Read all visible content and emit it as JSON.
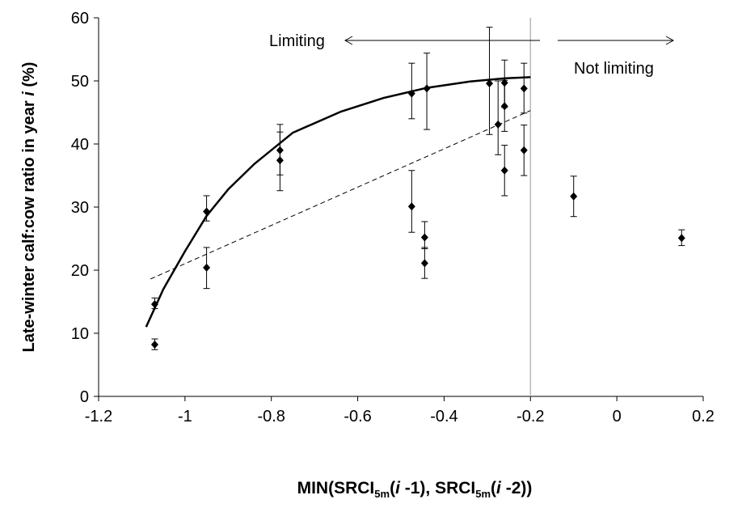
{
  "chart_data": {
    "type": "scatter",
    "xlabel": {
      "main": "MIN(SRCI",
      "sub1": "5m",
      "mid1": "(",
      "i1": "i",
      "mid2": " -1), SRCI",
      "sub2": "5m",
      "mid3": "(",
      "i2": "i",
      "end": " -2))"
    },
    "ylabel": {
      "main": "Late-winter calf:cow ratio in year ",
      "italic": "i",
      "end": "  (%)"
    },
    "xlim": [
      -1.2,
      0.2
    ],
    "ylim": [
      0,
      60
    ],
    "xticks": [
      "-1.2",
      "-1",
      "-0.8",
      "-0.6",
      "-0.4",
      "-0.2",
      "0",
      "0.2"
    ],
    "yticks": [
      "0",
      "10",
      "20",
      "30",
      "40",
      "50",
      "60"
    ],
    "grid": false,
    "threshold_x": -0.2,
    "annotations": {
      "limiting": "Limiting",
      "not_limiting": "Not limiting"
    },
    "points": [
      {
        "x": -1.07,
        "y": 14.6,
        "lo": 13.9,
        "hi": 15.6
      },
      {
        "x": -1.07,
        "y": 8.2,
        "lo": 7.4,
        "hi": 9.1
      },
      {
        "x": -0.95,
        "y": 29.3,
        "lo": 27.8,
        "hi": 31.8
      },
      {
        "x": -0.95,
        "y": 20.4,
        "lo": 17.1,
        "hi": 23.6
      },
      {
        "x": -0.78,
        "y": 39.0,
        "lo": 35.1,
        "hi": 43.1
      },
      {
        "x": -0.78,
        "y": 37.4,
        "lo": 32.6,
        "hi": 41.9
      },
      {
        "x": -0.475,
        "y": 48.0,
        "lo": 44.0,
        "hi": 52.8
      },
      {
        "x": -0.475,
        "y": 30.1,
        "lo": 26.0,
        "hi": 35.8
      },
      {
        "x": -0.44,
        "y": 48.8,
        "lo": 42.3,
        "hi": 54.4
      },
      {
        "x": -0.445,
        "y": 25.2,
        "lo": 23.4,
        "hi": 27.7
      },
      {
        "x": -0.445,
        "y": 21.1,
        "lo": 18.7,
        "hi": 23.6
      },
      {
        "x": -0.295,
        "y": 49.6,
        "lo": 41.5,
        "hi": 58.5
      },
      {
        "x": -0.275,
        "y": 43.1,
        "lo": 38.3,
        "hi": 50.0
      },
      {
        "x": -0.26,
        "y": 49.7,
        "lo": 45.8,
        "hi": 53.3
      },
      {
        "x": -0.26,
        "y": 46.0,
        "lo": 42.0,
        "hi": 50.1
      },
      {
        "x": -0.26,
        "y": 35.8,
        "lo": 31.8,
        "hi": 39.8
      },
      {
        "x": -0.215,
        "y": 48.8,
        "lo": 44.9,
        "hi": 52.8
      },
      {
        "x": -0.215,
        "y": 39.0,
        "lo": 35.0,
        "hi": 43.0
      },
      {
        "x": -0.1,
        "y": 31.7,
        "lo": 28.5,
        "hi": 34.9
      },
      {
        "x": 0.15,
        "y": 25.1,
        "lo": 23.9,
        "hi": 26.4
      }
    ],
    "curve": [
      {
        "x": -1.09,
        "y": 11.0
      },
      {
        "x": -1.05,
        "y": 17.0
      },
      {
        "x": -1.0,
        "y": 23.0
      },
      {
        "x": -0.95,
        "y": 28.6
      },
      {
        "x": -0.9,
        "y": 32.8
      },
      {
        "x": -0.84,
        "y": 36.8
      },
      {
        "x": -0.75,
        "y": 41.8
      },
      {
        "x": -0.64,
        "y": 45.1
      },
      {
        "x": -0.54,
        "y": 47.3
      },
      {
        "x": -0.44,
        "y": 48.9
      },
      {
        "x": -0.34,
        "y": 49.9
      },
      {
        "x": -0.26,
        "y": 50.4
      },
      {
        "x": -0.2,
        "y": 50.6
      }
    ],
    "trend": [
      {
        "x": -1.08,
        "y": 18.6
      },
      {
        "x": -0.2,
        "y": 45.3
      }
    ]
  }
}
